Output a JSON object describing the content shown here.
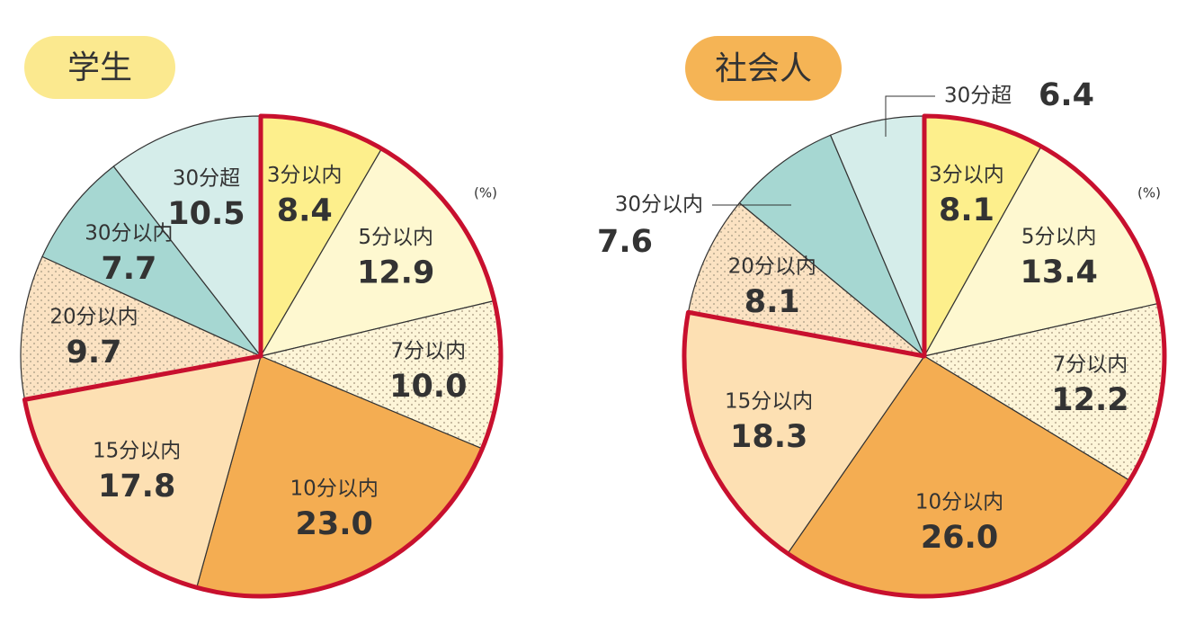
{
  "chart_data": [
    {
      "type": "pie",
      "title": "学生",
      "title_color": "#fbe98f",
      "unit": "(%)",
      "categories": [
        "3分以内",
        "5分以内",
        "7分以内",
        "10分以内",
        "15分以内",
        "20分以内",
        "30分以内",
        "30分超"
      ],
      "values": [
        8.4,
        12.9,
        10.0,
        23.0,
        17.8,
        9.7,
        7.7,
        10.5
      ],
      "value_labels": [
        "8.4",
        "12.9",
        "10.0",
        "23.0",
        "17.8",
        "9.7",
        "7.7",
        "10.5"
      ],
      "colors": [
        "#fdef8c",
        "#fef8d0",
        "#fdf5d8",
        "#f4ad52",
        "#fde0b3",
        "#fbe2c2",
        "#a6d7d2",
        "#d5edea"
      ],
      "dotted_slices": [
        2,
        5
      ],
      "highlight_slices": [
        0,
        1,
        2,
        3,
        4
      ],
      "highlight_color": "#c8102e",
      "outside_labels": []
    },
    {
      "type": "pie",
      "title": "社会人",
      "title_color": "#f5b455",
      "unit": "(%)",
      "categories": [
        "3分以内",
        "5分以内",
        "7分以内",
        "10分以内",
        "15分以内",
        "20分以内",
        "30分以内",
        "30分超"
      ],
      "values": [
        8.1,
        13.4,
        12.2,
        26.0,
        18.3,
        8.1,
        7.6,
        6.4
      ],
      "value_labels": [
        "8.1",
        "13.4",
        "12.2",
        "26.0",
        "18.3",
        "8.1",
        "7.6",
        "6.4"
      ],
      "colors": [
        "#fdef8c",
        "#fef8d0",
        "#fdf5d8",
        "#f4ad52",
        "#fde0b3",
        "#fbe2c2",
        "#a6d7d2",
        "#d5edea"
      ],
      "dotted_slices": [
        2,
        5
      ],
      "highlight_slices": [
        0,
        1,
        2,
        3,
        4
      ],
      "highlight_color": "#c8102e",
      "outside_labels": [
        6,
        7
      ]
    }
  ]
}
